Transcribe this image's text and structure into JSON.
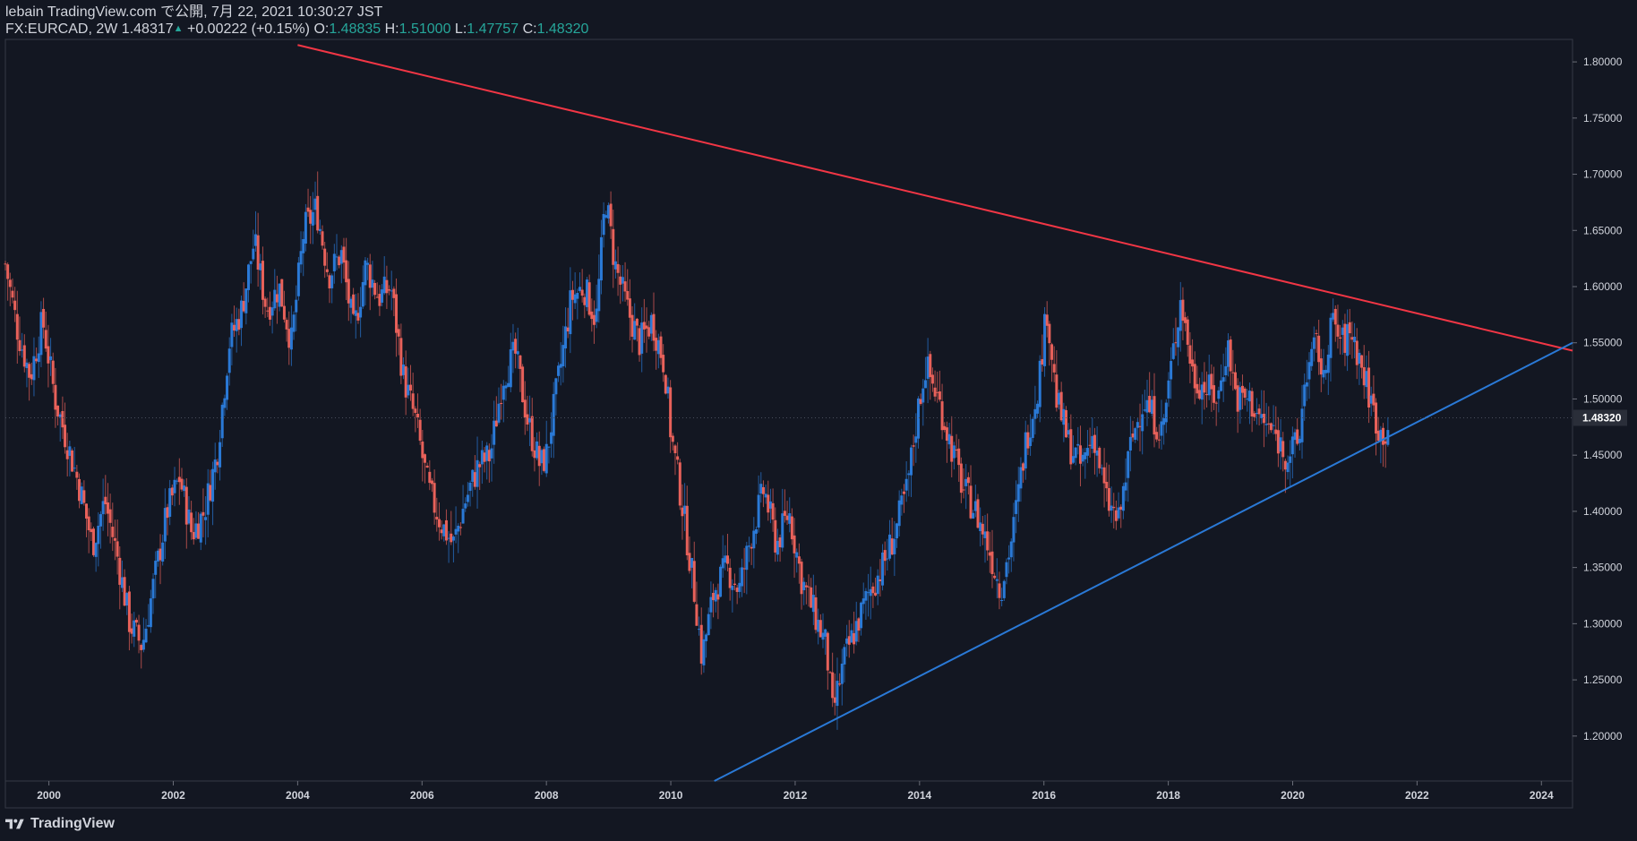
{
  "header": {
    "publish_line": "lebain TradingView.com で公開, 7月 22, 2021 10:30:27 JST",
    "symbol": "FX:EURCAD, 2W",
    "last": "1.48317",
    "change": "+0.00222 (+0.15%)",
    "o_label": "O:",
    "o_value": "1.48835",
    "h_label": "H:",
    "h_value": "1.51000",
    "l_label": "L:",
    "l_value": "1.47757",
    "c_label": "C:",
    "c_value": "1.48320"
  },
  "footer": {
    "brand": "TradingView"
  },
  "colors": {
    "background": "#131722",
    "bull": "#2a79d6",
    "bear": "#e8615a",
    "resistance_line": "#f23645",
    "support_line": "#2a79d6",
    "price_label_bg": "#2a2e39",
    "up_text": "#26a69a"
  },
  "chart_data": {
    "type": "candlestick",
    "symbol": "FX:EURCAD",
    "timeframe": "2W",
    "x_ticks": [
      "2000",
      "2002",
      "2004",
      "2006",
      "2008",
      "2010",
      "2012",
      "2014",
      "2016",
      "2018",
      "2020",
      "2022",
      "2024"
    ],
    "y_ticks": [
      "1.20000",
      "1.25000",
      "1.30000",
      "1.35000",
      "1.40000",
      "1.45000",
      "1.50000",
      "1.55000",
      "1.60000",
      "1.65000",
      "1.70000",
      "1.75000",
      "1.80000"
    ],
    "xlim": [
      1999.3,
      2024.5
    ],
    "ylim": [
      1.16,
      1.82
    ],
    "current_price_label": "1.48320",
    "current_price": 1.4832,
    "close_path": [
      [
        1999.3,
        1.62
      ],
      [
        1999.5,
        1.56
      ],
      [
        1999.7,
        1.52
      ],
      [
        1999.9,
        1.57
      ],
      [
        2000.1,
        1.5
      ],
      [
        2000.3,
        1.46
      ],
      [
        2000.5,
        1.42
      ],
      [
        2000.7,
        1.37
      ],
      [
        2000.9,
        1.41
      ],
      [
        2001.1,
        1.36
      ],
      [
        2001.3,
        1.3
      ],
      [
        2001.5,
        1.28
      ],
      [
        2001.7,
        1.34
      ],
      [
        2001.9,
        1.4
      ],
      [
        2002.1,
        1.43
      ],
      [
        2002.3,
        1.38
      ],
      [
        2002.5,
        1.4
      ],
      [
        2002.7,
        1.45
      ],
      [
        2002.9,
        1.55
      ],
      [
        2003.1,
        1.58
      ],
      [
        2003.3,
        1.64
      ],
      [
        2003.5,
        1.58
      ],
      [
        2003.7,
        1.6
      ],
      [
        2003.9,
        1.55
      ],
      [
        2004.1,
        1.65
      ],
      [
        2004.3,
        1.67
      ],
      [
        2004.5,
        1.61
      ],
      [
        2004.7,
        1.63
      ],
      [
        2004.9,
        1.56
      ],
      [
        2005.1,
        1.62
      ],
      [
        2005.3,
        1.59
      ],
      [
        2005.5,
        1.6
      ],
      [
        2005.7,
        1.52
      ],
      [
        2005.9,
        1.48
      ],
      [
        2006.1,
        1.42
      ],
      [
        2006.3,
        1.39
      ],
      [
        2006.5,
        1.37
      ],
      [
        2006.7,
        1.41
      ],
      [
        2006.9,
        1.44
      ],
      [
        2007.1,
        1.45
      ],
      [
        2007.3,
        1.52
      ],
      [
        2007.5,
        1.54
      ],
      [
        2007.7,
        1.48
      ],
      [
        2007.9,
        1.44
      ],
      [
        2008.0,
        1.45
      ],
      [
        2008.2,
        1.52
      ],
      [
        2008.4,
        1.59
      ],
      [
        2008.6,
        1.6
      ],
      [
        2008.8,
        1.57
      ],
      [
        2008.95,
        1.68
      ],
      [
        2009.1,
        1.62
      ],
      [
        2009.3,
        1.58
      ],
      [
        2009.5,
        1.55
      ],
      [
        2009.7,
        1.57
      ],
      [
        2009.9,
        1.53
      ],
      [
        2010.0,
        1.47
      ],
      [
        2010.2,
        1.4
      ],
      [
        2010.4,
        1.32
      ],
      [
        2010.5,
        1.27
      ],
      [
        2010.7,
        1.33
      ],
      [
        2010.9,
        1.35
      ],
      [
        2011.1,
        1.33
      ],
      [
        2011.3,
        1.38
      ],
      [
        2011.5,
        1.42
      ],
      [
        2011.7,
        1.37
      ],
      [
        2011.9,
        1.4
      ],
      [
        2012.1,
        1.34
      ],
      [
        2012.3,
        1.31
      ],
      [
        2012.5,
        1.28
      ],
      [
        2012.6,
        1.22
      ],
      [
        2012.8,
        1.27
      ],
      [
        2013.0,
        1.3
      ],
      [
        2013.2,
        1.33
      ],
      [
        2013.4,
        1.35
      ],
      [
        2013.6,
        1.38
      ],
      [
        2013.8,
        1.42
      ],
      [
        2014.0,
        1.5
      ],
      [
        2014.1,
        1.53
      ],
      [
        2014.3,
        1.5
      ],
      [
        2014.5,
        1.46
      ],
      [
        2014.7,
        1.42
      ],
      [
        2014.9,
        1.4
      ],
      [
        2015.1,
        1.37
      ],
      [
        2015.3,
        1.33
      ],
      [
        2015.5,
        1.38
      ],
      [
        2015.7,
        1.46
      ],
      [
        2015.9,
        1.51
      ],
      [
        2016.05,
        1.58
      ],
      [
        2016.2,
        1.5
      ],
      [
        2016.4,
        1.46
      ],
      [
        2016.6,
        1.44
      ],
      [
        2016.8,
        1.47
      ],
      [
        2017.0,
        1.41
      ],
      [
        2017.2,
        1.39
      ],
      [
        2017.4,
        1.46
      ],
      [
        2017.6,
        1.5
      ],
      [
        2017.8,
        1.48
      ],
      [
        2017.9,
        1.47
      ],
      [
        2018.1,
        1.55
      ],
      [
        2018.2,
        1.59
      ],
      [
        2018.4,
        1.52
      ],
      [
        2018.6,
        1.51
      ],
      [
        2018.8,
        1.5
      ],
      [
        2018.95,
        1.55
      ],
      [
        2019.1,
        1.5
      ],
      [
        2019.3,
        1.5
      ],
      [
        2019.5,
        1.48
      ],
      [
        2019.7,
        1.47
      ],
      [
        2019.9,
        1.45
      ],
      [
        2020.1,
        1.46
      ],
      [
        2020.2,
        1.52
      ],
      [
        2020.4,
        1.55
      ],
      [
        2020.5,
        1.51
      ],
      [
        2020.6,
        1.57
      ],
      [
        2020.8,
        1.55
      ],
      [
        2020.95,
        1.56
      ],
      [
        2021.1,
        1.53
      ],
      [
        2021.3,
        1.49
      ],
      [
        2021.4,
        1.47
      ],
      [
        2021.5,
        1.47
      ],
      [
        2021.55,
        1.48
      ]
    ],
    "resistance_trendline": {
      "from": [
        "2004.0",
        "1.8150"
      ],
      "to": [
        "2024.5",
        "1.5430"
      ],
      "color": "red"
    },
    "support_trendline": {
      "from": [
        "2010.7",
        "1.1600"
      ],
      "to": [
        "2024.5",
        "1.5500"
      ],
      "color": "blue"
    },
    "grid": false,
    "legend": "none"
  }
}
